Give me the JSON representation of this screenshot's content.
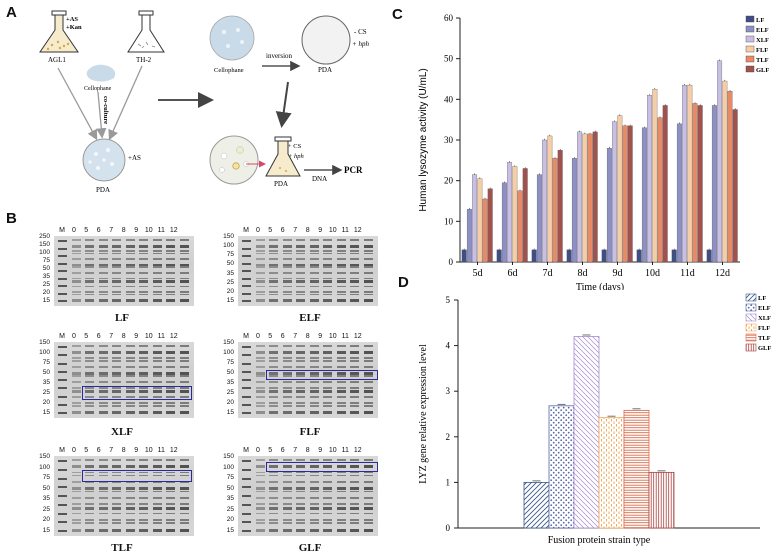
{
  "panels": {
    "a": "A",
    "b": "B",
    "c": "C",
    "d": "D"
  },
  "schematic": {
    "flask1_label": "AGL1",
    "flask1_markers": [
      "+AS",
      "+Kan"
    ],
    "flask2_label": "TH-2",
    "cellophane_label": "Cellophane",
    "coculture_label": "co-culture",
    "pda1_label": "PDA",
    "pda1_marker": "+AS",
    "cellophane2_label": "Cellophane",
    "inversion_label": "inversion",
    "pda2_label": "PDA",
    "pda2_markers": [
      "- CS",
      "+ hph"
    ],
    "pda3_markers": [
      "+ CS",
      "+ hph"
    ],
    "pda3_label": "PDA",
    "dna_label": "DNA",
    "pcr_label": "PCR"
  },
  "gels": [
    {
      "title": "LF",
      "lanes": [
        "M",
        "0",
        "5",
        "6",
        "7",
        "8",
        "9",
        "10",
        "11",
        "12"
      ],
      "ladder": [
        "250",
        "150",
        "100",
        "75",
        "50",
        "35",
        "25",
        "20",
        "15"
      ],
      "highlight": false
    },
    {
      "title": "ELF",
      "lanes": [
        "M",
        "0",
        "5",
        "6",
        "7",
        "8",
        "9",
        "10",
        "11",
        "12"
      ],
      "ladder": [
        "150",
        "100",
        "75",
        "50",
        "35",
        "25",
        "20",
        "15"
      ],
      "highlight": false
    },
    {
      "title": "XLF",
      "lanes": [
        "M",
        "0",
        "5",
        "6",
        "7",
        "8",
        "9",
        "10",
        "11",
        "12"
      ],
      "ladder": [
        "150",
        "100",
        "75",
        "50",
        "35",
        "25",
        "20",
        "15"
      ],
      "highlight": true
    },
    {
      "title": "FLF",
      "lanes": [
        "M",
        "0",
        "5",
        "6",
        "7",
        "8",
        "9",
        "10",
        "11",
        "12"
      ],
      "ladder": [
        "150",
        "100",
        "75",
        "50",
        "35",
        "25",
        "20",
        "15"
      ],
      "highlight": true
    },
    {
      "title": "TLF",
      "lanes": [
        "M",
        "0",
        "5",
        "6",
        "7",
        "8",
        "9",
        "10",
        "11",
        "12"
      ],
      "ladder": [
        "150",
        "100",
        "75",
        "50",
        "35",
        "25",
        "20",
        "15"
      ],
      "highlight": true
    },
    {
      "title": "GLF",
      "lanes": [
        "M",
        "0",
        "5",
        "6",
        "7",
        "8",
        "9",
        "10",
        "11",
        "12"
      ],
      "ladder": [
        "150",
        "100",
        "75",
        "50",
        "35",
        "25",
        "20",
        "15"
      ],
      "highlight": true
    }
  ],
  "chart_data": [
    {
      "type": "bar",
      "panel": "C",
      "title": "",
      "xlabel": "Time (days)",
      "ylabel": "Human lysozyme activity (U/mL)",
      "categories": [
        "5d",
        "6d",
        "7d",
        "8d",
        "9d",
        "10d",
        "11d",
        "12d"
      ],
      "ylim": [
        0,
        60
      ],
      "yticks": [
        "0",
        "10",
        "20",
        "30",
        "40",
        "50",
        "60"
      ],
      "legend_position": "top-right",
      "series": [
        {
          "name": "LF",
          "color": "#3f4e85",
          "values": [
            3,
            3,
            3,
            3,
            3,
            3,
            3,
            3
          ]
        },
        {
          "name": "ELF",
          "color": "#8d90c4",
          "values": [
            13,
            19.5,
            21.5,
            25.5,
            28,
            33,
            34,
            38.5
          ]
        },
        {
          "name": "XLF",
          "color": "#c9bfe3",
          "values": [
            21.5,
            24.5,
            30,
            32,
            34.5,
            41,
            43.5,
            49.5
          ]
        },
        {
          "name": "FLF",
          "color": "#f5cda6",
          "values": [
            20.5,
            23.5,
            31,
            31.5,
            36,
            42.5,
            43.5,
            44.5
          ]
        },
        {
          "name": "TLF",
          "color": "#e88a66",
          "values": [
            15.5,
            17.5,
            25.5,
            31.5,
            33.5,
            35.5,
            39,
            42
          ]
        },
        {
          "name": "GLF",
          "color": "#a0524f",
          "values": [
            18,
            23,
            27.5,
            32,
            33.5,
            38.5,
            38.5,
            37.5
          ]
        }
      ]
    },
    {
      "type": "bar",
      "panel": "D",
      "title": "",
      "xlabel": "Fusion protein strain type",
      "ylabel": "LYZ gene relative expression level",
      "categories": [
        "LF",
        "ELF",
        "XLF",
        "FLF",
        "TLF",
        "GLF"
      ],
      "ylim": [
        0,
        5
      ],
      "yticks": [
        "0",
        "1",
        "2",
        "3",
        "4",
        "5"
      ],
      "legend_position": "top-right",
      "series": [
        {
          "name": "LF",
          "color": "#3b5a8a",
          "pattern": "diag",
          "value": 1.0
        },
        {
          "name": "ELF",
          "color": "#5a6aa8",
          "pattern": "dots",
          "value": 2.68
        },
        {
          "name": "XLF",
          "color": "#a78ccf",
          "pattern": "diag-rev",
          "value": 4.2
        },
        {
          "name": "FLF",
          "color": "#f0a85a",
          "pattern": "dots-v",
          "value": 2.42
        },
        {
          "name": "TLF",
          "color": "#d96a4a",
          "pattern": "hlines",
          "value": 2.58
        },
        {
          "name": "GLF",
          "color": "#a8433e",
          "pattern": "vlines",
          "value": 1.22
        }
      ]
    }
  ]
}
